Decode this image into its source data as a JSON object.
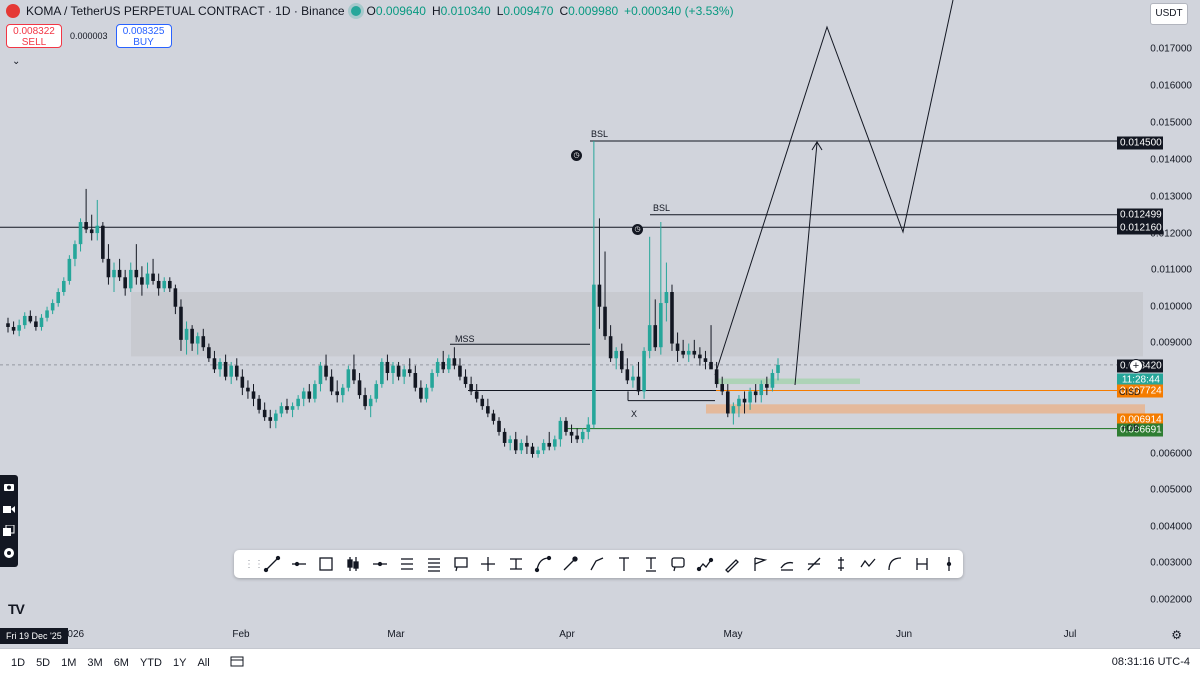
{
  "header": {
    "symbol_title": "KOMA / TetherUS PERPETUAL CONTRACT · 1D · Binance",
    "open_label": "O",
    "open": "0.009640",
    "high_label": "H",
    "high": "0.010340",
    "low_label": "L",
    "low": "0.009470",
    "close_label": "C",
    "close": "0.009980",
    "change": "+0.000340 (+3.53%)"
  },
  "trade": {
    "sell_price": "0.008322",
    "sell_label": "SELL",
    "spread": "0.000003",
    "buy_price": "0.008325",
    "buy_label": "BUY"
  },
  "currency_button": "USDT",
  "price_axis": {
    "ticks": [
      "0.017000",
      "0.016000",
      "0.015000",
      "0.014000",
      "0.013000",
      "0.012000",
      "0.011000",
      "0.010000",
      "0.009000",
      "0.006000",
      "0.005000",
      "0.004000",
      "0.003000",
      "0.002000"
    ],
    "labels": {
      "bsl_high": "0.014500",
      "bsl_mid": "0.012499",
      "level_a": "0.012160",
      "current": "0.008420",
      "countdown": "11:28:44",
      "cisd": "0.007724",
      "ob_top": "0.006914",
      "ob_low": "0.006691"
    }
  },
  "annotations": {
    "bsl_1": "BSL",
    "bsl_2": "BSL",
    "mss": "MSS",
    "x": "X",
    "cisd": "CISD",
    "ob": "+OB"
  },
  "time_axis": {
    "labels": [
      "2026",
      "Feb",
      "Mar",
      "Apr",
      "May",
      "Jun",
      "Jul"
    ],
    "crosshair_date": "Fri 19 Dec '25"
  },
  "bottom_bar": {
    "periods": [
      "1D",
      "5D",
      "1M",
      "3M",
      "6M",
      "YTD",
      "1Y",
      "All"
    ],
    "clock": "08:31:16 UTC-4"
  },
  "colors": {
    "up": "#26a69a",
    "down": "#131722",
    "background": "#d1d4dc",
    "zone_grey": "#c5c7cd",
    "zone_orange": "#e8b48f",
    "zone_green": "#a9d3b2"
  },
  "drawing_tools": [
    "trend-line-icon",
    "horizontal-line-icon",
    "rectangle-icon",
    "candles-icon",
    "ray-icon",
    "price-range-icon",
    "fib-icon",
    "callout-icon",
    "crosshair-icon",
    "measure-icon",
    "arc-icon",
    "brush-icon",
    "path-icon",
    "text-icon",
    "anchored-text-icon",
    "comment-icon",
    "pattern-icon",
    "pencil-icon",
    "flag-icon",
    "forecast-icon",
    "projection-icon",
    "long-position-icon",
    "wave-icon",
    "curve-icon",
    "bars-pattern-icon",
    "range-icon"
  ],
  "chart_data": {
    "type": "candlestick",
    "ylim": [
      0.0015,
      0.0185
    ],
    "x_labels": [
      "2026",
      "Feb",
      "Mar",
      "Apr",
      "May",
      "Jun",
      "Jul"
    ],
    "candles": [
      [
        0.00955,
        0.0097,
        0.0093,
        0.00945
      ],
      [
        0.00945,
        0.0096,
        0.00925,
        0.00935
      ],
      [
        0.00935,
        0.00965,
        0.0092,
        0.0095
      ],
      [
        0.0095,
        0.00985,
        0.0094,
        0.00975
      ],
      [
        0.00975,
        0.0099,
        0.00955,
        0.0096
      ],
      [
        0.0096,
        0.00975,
        0.00935,
        0.00945
      ],
      [
        0.00945,
        0.0098,
        0.00935,
        0.0097
      ],
      [
        0.0097,
        0.01,
        0.0096,
        0.0099
      ],
      [
        0.0099,
        0.0102,
        0.0098,
        0.0101
      ],
      [
        0.0101,
        0.0105,
        0.01,
        0.0104
      ],
      [
        0.0104,
        0.0108,
        0.0103,
        0.0107
      ],
      [
        0.0107,
        0.0114,
        0.0106,
        0.0113
      ],
      [
        0.0113,
        0.0118,
        0.0111,
        0.0117
      ],
      [
        0.0117,
        0.0124,
        0.0115,
        0.0123
      ],
      [
        0.0123,
        0.0132,
        0.012,
        0.0121
      ],
      [
        0.0121,
        0.0125,
        0.0118,
        0.012
      ],
      [
        0.012,
        0.0129,
        0.0118,
        0.0122
      ],
      [
        0.0122,
        0.0123,
        0.0112,
        0.0113
      ],
      [
        0.0113,
        0.0117,
        0.0106,
        0.0108
      ],
      [
        0.0108,
        0.0112,
        0.0104,
        0.011
      ],
      [
        0.011,
        0.0113,
        0.0107,
        0.0108
      ],
      [
        0.0108,
        0.011,
        0.0103,
        0.0105
      ],
      [
        0.0105,
        0.0112,
        0.0104,
        0.011
      ],
      [
        0.011,
        0.0117,
        0.0106,
        0.0108
      ],
      [
        0.0108,
        0.0111,
        0.0103,
        0.0106
      ],
      [
        0.0106,
        0.0112,
        0.0105,
        0.0109
      ],
      [
        0.0109,
        0.0113,
        0.0106,
        0.0107
      ],
      [
        0.0107,
        0.0109,
        0.0103,
        0.0105
      ],
      [
        0.0105,
        0.0108,
        0.0104,
        0.0107
      ],
      [
        0.0107,
        0.0108,
        0.0104,
        0.0105
      ],
      [
        0.0105,
        0.0106,
        0.0098,
        0.01
      ],
      [
        0.01,
        0.0102,
        0.0088,
        0.0091
      ],
      [
        0.0091,
        0.0096,
        0.0087,
        0.0094
      ],
      [
        0.0094,
        0.0095,
        0.0088,
        0.009
      ],
      [
        0.009,
        0.0093,
        0.0087,
        0.0092
      ],
      [
        0.0092,
        0.0094,
        0.0088,
        0.0089
      ],
      [
        0.0089,
        0.009,
        0.0085,
        0.0086
      ],
      [
        0.0086,
        0.0088,
        0.0082,
        0.0083
      ],
      [
        0.0083,
        0.0086,
        0.0081,
        0.0085
      ],
      [
        0.0085,
        0.0087,
        0.008,
        0.0081
      ],
      [
        0.0081,
        0.0085,
        0.0079,
        0.0084
      ],
      [
        0.0084,
        0.0086,
        0.008,
        0.0081
      ],
      [
        0.0081,
        0.0083,
        0.0076,
        0.0078
      ],
      [
        0.0078,
        0.008,
        0.0075,
        0.0077
      ],
      [
        0.0077,
        0.0079,
        0.0073,
        0.0075
      ],
      [
        0.0075,
        0.0076,
        0.0071,
        0.0072
      ],
      [
        0.0072,
        0.0074,
        0.0069,
        0.007
      ],
      [
        0.007,
        0.0072,
        0.0067,
        0.0069
      ],
      [
        0.0069,
        0.0072,
        0.0067,
        0.0071
      ],
      [
        0.0071,
        0.0074,
        0.007,
        0.0073
      ],
      [
        0.0073,
        0.0075,
        0.0071,
        0.0072
      ],
      [
        0.0072,
        0.0074,
        0.007,
        0.0073
      ],
      [
        0.0073,
        0.0076,
        0.0072,
        0.0075
      ],
      [
        0.0075,
        0.0078,
        0.0073,
        0.0077
      ],
      [
        0.0077,
        0.0079,
        0.0074,
        0.0075
      ],
      [
        0.0075,
        0.008,
        0.0074,
        0.0079
      ],
      [
        0.0079,
        0.0085,
        0.0077,
        0.0084
      ],
      [
        0.0084,
        0.0087,
        0.008,
        0.0081
      ],
      [
        0.0081,
        0.0083,
        0.0076,
        0.0077
      ],
      [
        0.0077,
        0.008,
        0.0074,
        0.0076
      ],
      [
        0.0076,
        0.0079,
        0.0074,
        0.0078
      ],
      [
        0.0078,
        0.0084,
        0.0077,
        0.0083
      ],
      [
        0.0083,
        0.0087,
        0.0079,
        0.008
      ],
      [
        0.008,
        0.0082,
        0.0075,
        0.0076
      ],
      [
        0.0076,
        0.0078,
        0.0072,
        0.0073
      ],
      [
        0.0073,
        0.0076,
        0.007,
        0.0075
      ],
      [
        0.0075,
        0.008,
        0.0074,
        0.0079
      ],
      [
        0.0079,
        0.0086,
        0.0078,
        0.0085
      ],
      [
        0.0085,
        0.0087,
        0.008,
        0.0082
      ],
      [
        0.0082,
        0.0085,
        0.0079,
        0.0084
      ],
      [
        0.0084,
        0.0085,
        0.008,
        0.0081
      ],
      [
        0.0081,
        0.0084,
        0.0079,
        0.0083
      ],
      [
        0.0083,
        0.0086,
        0.0081,
        0.0082
      ],
      [
        0.0082,
        0.0084,
        0.0077,
        0.0078
      ],
      [
        0.0078,
        0.008,
        0.0074,
        0.0075
      ],
      [
        0.0075,
        0.0079,
        0.0074,
        0.0078
      ],
      [
        0.0078,
        0.0083,
        0.0077,
        0.0082
      ],
      [
        0.0082,
        0.0086,
        0.0081,
        0.0085
      ],
      [
        0.0085,
        0.0088,
        0.0082,
        0.0083
      ],
      [
        0.0083,
        0.0087,
        0.0082,
        0.0086
      ],
      [
        0.0086,
        0.0089,
        0.0083,
        0.0084
      ],
      [
        0.0084,
        0.0086,
        0.008,
        0.0081
      ],
      [
        0.0081,
        0.0083,
        0.0078,
        0.0079
      ],
      [
        0.0079,
        0.0081,
        0.0076,
        0.0077
      ],
      [
        0.0077,
        0.0079,
        0.0074,
        0.0075
      ],
      [
        0.0075,
        0.0076,
        0.0072,
        0.0073
      ],
      [
        0.0073,
        0.0075,
        0.007,
        0.0071
      ],
      [
        0.0071,
        0.0072,
        0.0068,
        0.0069
      ],
      [
        0.0069,
        0.007,
        0.0065,
        0.0066
      ],
      [
        0.0066,
        0.0067,
        0.0062,
        0.0063
      ],
      [
        0.0063,
        0.0065,
        0.0061,
        0.0064
      ],
      [
        0.0064,
        0.0066,
        0.006,
        0.0061
      ],
      [
        0.0061,
        0.0064,
        0.006,
        0.0063
      ],
      [
        0.0063,
        0.0065,
        0.006,
        0.0062
      ],
      [
        0.0062,
        0.0063,
        0.0059,
        0.006
      ],
      [
        0.006,
        0.0062,
        0.0059,
        0.0061
      ],
      [
        0.0061,
        0.0064,
        0.006,
        0.0063
      ],
      [
        0.0063,
        0.0066,
        0.0061,
        0.0062
      ],
      [
        0.0062,
        0.0065,
        0.0061,
        0.0064
      ],
      [
        0.0064,
        0.007,
        0.0062,
        0.0069
      ],
      [
        0.0069,
        0.007,
        0.0065,
        0.0066
      ],
      [
        0.0066,
        0.0068,
        0.0063,
        0.0065
      ],
      [
        0.0065,
        0.0067,
        0.0063,
        0.0064
      ],
      [
        0.0064,
        0.0067,
        0.0063,
        0.0066
      ],
      [
        0.0066,
        0.007,
        0.0064,
        0.0068
      ],
      [
        0.0068,
        0.0145,
        0.0067,
        0.0106
      ],
      [
        0.0106,
        0.0124,
        0.0094,
        0.01
      ],
      [
        0.01,
        0.0115,
        0.0091,
        0.0092
      ],
      [
        0.0092,
        0.0095,
        0.0085,
        0.0086
      ],
      [
        0.0086,
        0.0089,
        0.0083,
        0.0088
      ],
      [
        0.0088,
        0.009,
        0.0082,
        0.0083
      ],
      [
        0.0083,
        0.0086,
        0.0079,
        0.008
      ],
      [
        0.008,
        0.0084,
        0.0078,
        0.0081
      ],
      [
        0.0081,
        0.0085,
        0.0076,
        0.0077
      ],
      [
        0.0077,
        0.0089,
        0.0075,
        0.0088
      ],
      [
        0.0088,
        0.0119,
        0.0086,
        0.0095
      ],
      [
        0.0095,
        0.0102,
        0.0088,
        0.0089
      ],
      [
        0.0089,
        0.0123,
        0.0087,
        0.0101
      ],
      [
        0.0101,
        0.0112,
        0.0096,
        0.0104
      ],
      [
        0.0104,
        0.0106,
        0.0088,
        0.009
      ],
      [
        0.009,
        0.0093,
        0.0085,
        0.0088
      ],
      [
        0.0088,
        0.0091,
        0.0086,
        0.0087
      ],
      [
        0.0087,
        0.009,
        0.0085,
        0.0088
      ],
      [
        0.0088,
        0.0091,
        0.0086,
        0.0087
      ],
      [
        0.0087,
        0.0089,
        0.0084,
        0.0086
      ],
      [
        0.0086,
        0.0088,
        0.0083,
        0.0085
      ],
      [
        0.0085,
        0.0095,
        0.0084,
        0.0083
      ],
      [
        0.0083,
        0.0085,
        0.0078,
        0.0079
      ],
      [
        0.0079,
        0.0081,
        0.0076,
        0.0077
      ],
      [
        0.0077,
        0.0079,
        0.007,
        0.0071
      ],
      [
        0.0071,
        0.0074,
        0.0068,
        0.0073
      ],
      [
        0.0073,
        0.0076,
        0.007,
        0.0075
      ],
      [
        0.0075,
        0.0077,
        0.0071,
        0.0074
      ],
      [
        0.0074,
        0.0078,
        0.0072,
        0.0077
      ],
      [
        0.0077,
        0.0079,
        0.0074,
        0.0076
      ],
      [
        0.0076,
        0.008,
        0.0074,
        0.0079
      ],
      [
        0.0079,
        0.0081,
        0.0076,
        0.0078
      ],
      [
        0.0078,
        0.0083,
        0.0077,
        0.0082
      ],
      [
        0.0082,
        0.0086,
        0.008,
        0.00842
      ]
    ]
  }
}
